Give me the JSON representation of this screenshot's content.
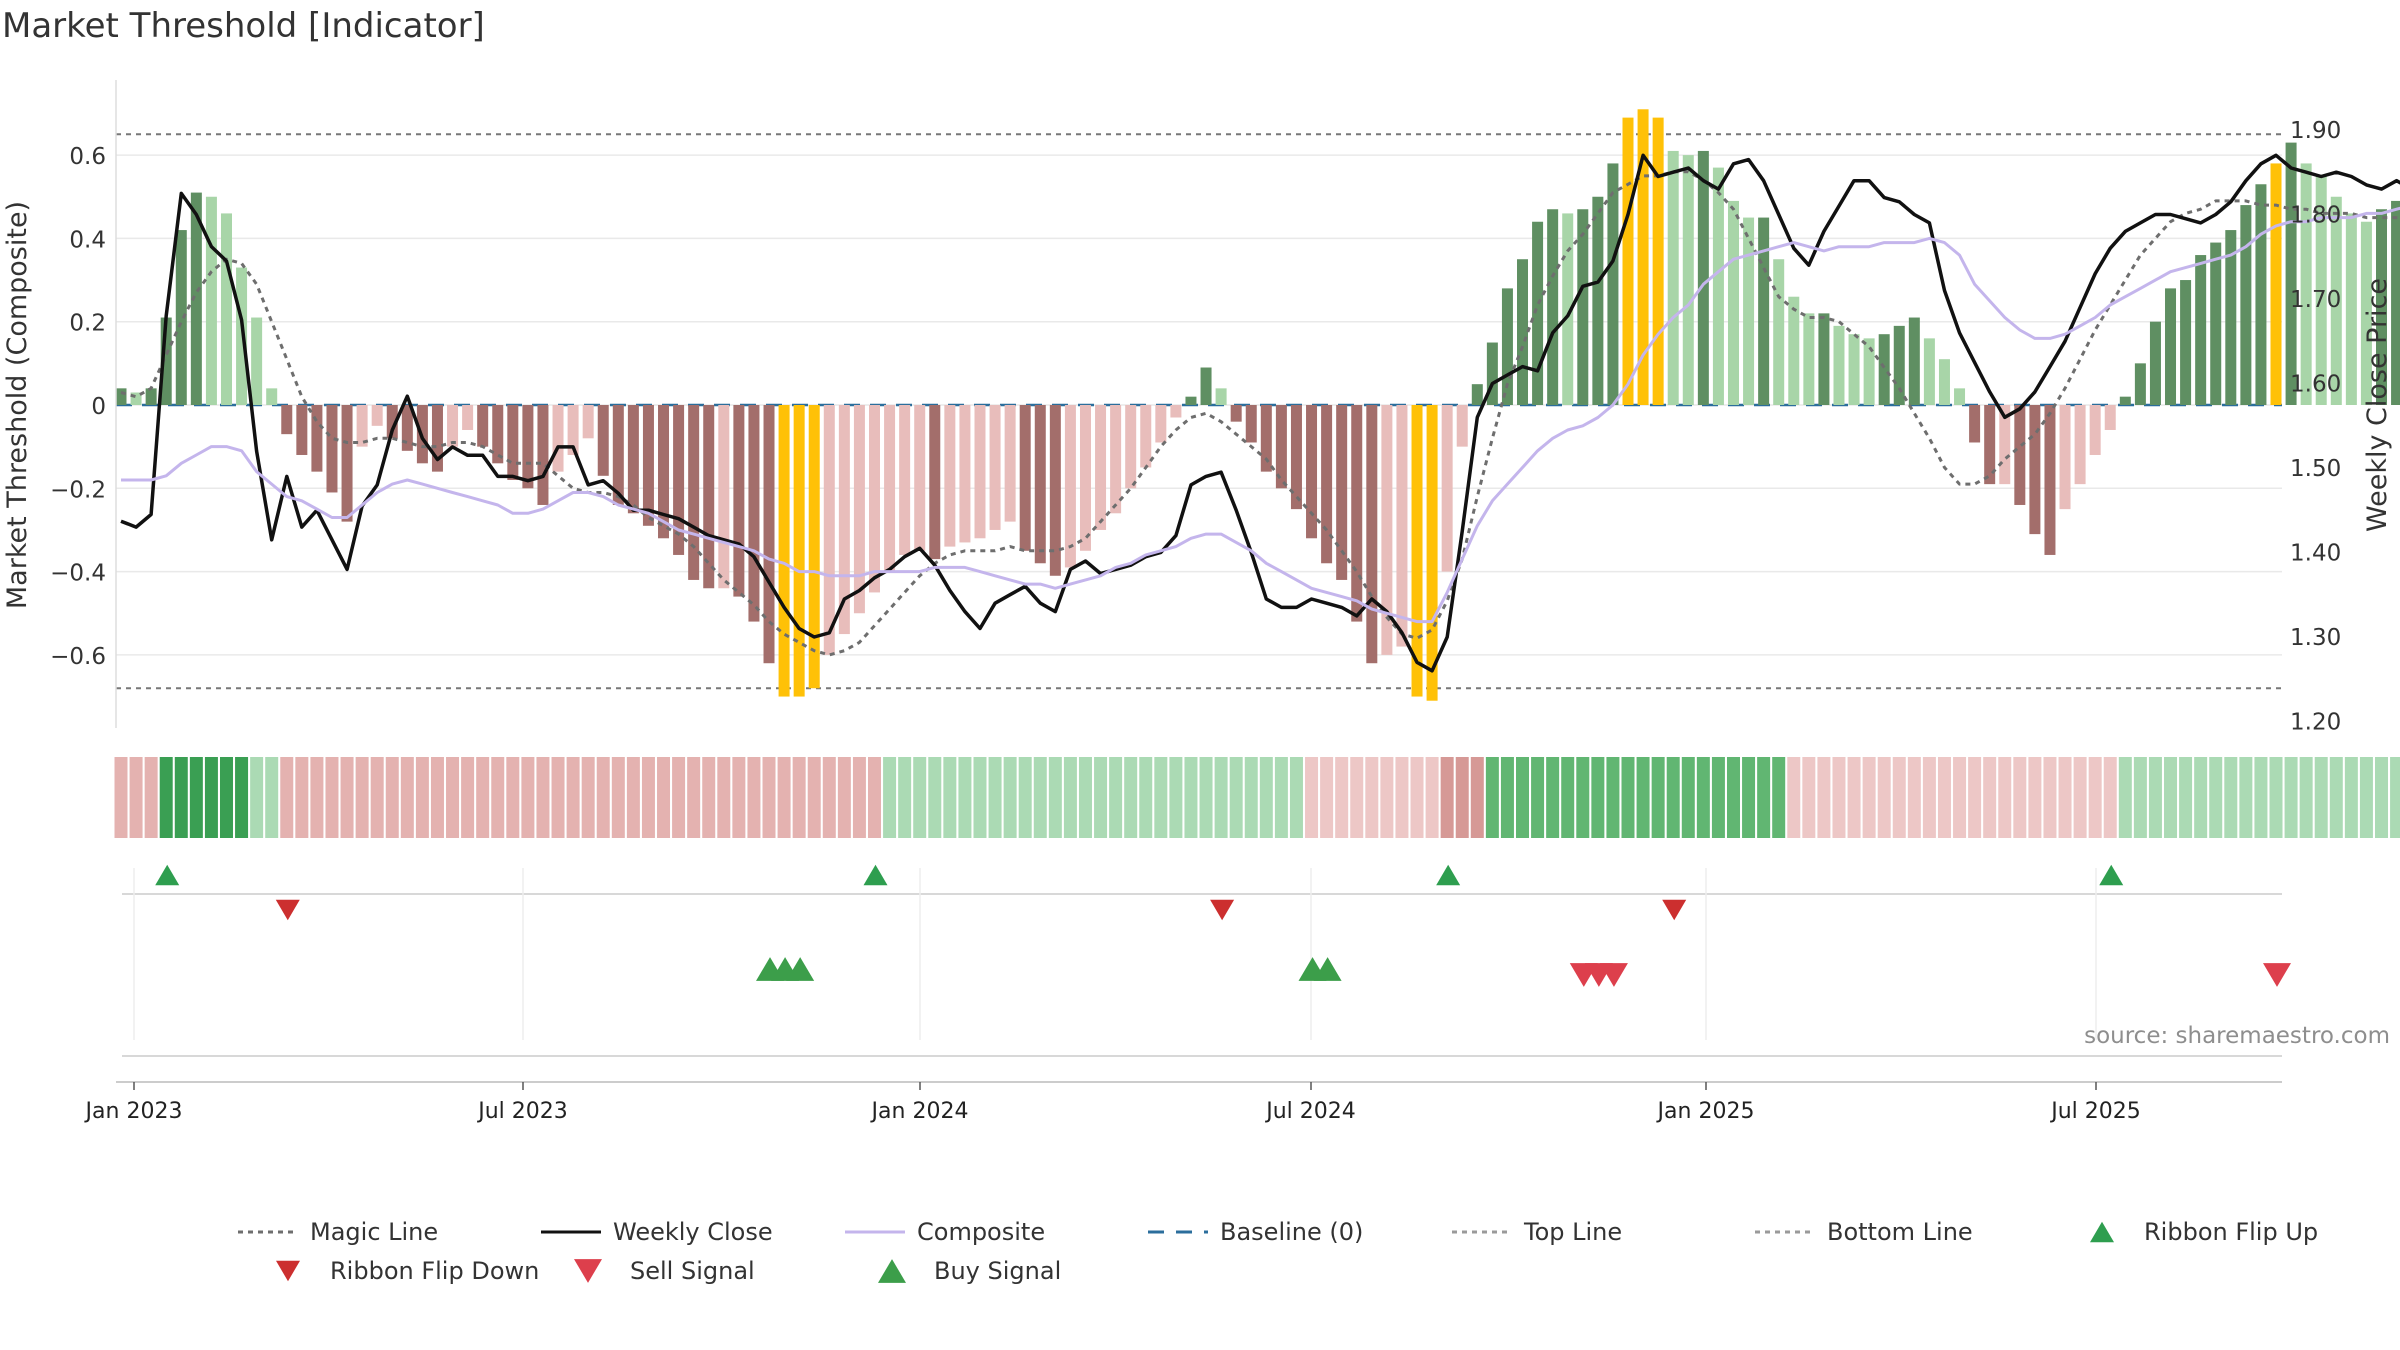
{
  "title": "Market Threshold [Indicator]",
  "watermark": "source: sharemaestro.com",
  "chart_data": {
    "type": "bar",
    "title": "Market Threshold [Indicator]",
    "x_ticks": [
      "Jan 2023",
      "Jul 2023",
      "Jan 2024",
      "Jul 2024",
      "Jan 2025",
      "Jul 2025"
    ],
    "y_left": {
      "label": "Market Threshold (Composite)",
      "ylim": [
        -0.78,
        0.78
      ],
      "ticks": [
        {
          "v": 0.6,
          "t": "0.6"
        },
        {
          "v": 0.4,
          "t": "0.4"
        },
        {
          "v": 0.2,
          "t": "0.2"
        },
        {
          "v": 0,
          "t": "0"
        },
        {
          "v": -0.2,
          "t": "−0.2"
        },
        {
          "v": -0.4,
          "t": "−0.4"
        },
        {
          "v": -0.6,
          "t": "−0.6"
        }
      ]
    },
    "y_right": {
      "label": "Weekly Close Price",
      "ylim": [
        1.18,
        1.95
      ],
      "ticks": [
        {
          "v": 1.9,
          "t": "1.90"
        },
        {
          "v": 1.8,
          "t": "1.80"
        },
        {
          "v": 1.7,
          "t": "1.70"
        },
        {
          "v": 1.6,
          "t": "1.60"
        },
        {
          "v": 1.5,
          "t": "1.50"
        },
        {
          "v": 1.4,
          "t": "1.40"
        },
        {
          "v": 1.3,
          "t": "1.30"
        },
        {
          "v": 1.2,
          "t": "1.20"
        }
      ]
    },
    "top_line": 0.65,
    "bottom_line": -0.68,
    "bars": [
      0.04,
      0.03,
      0.04,
      0.21,
      0.42,
      0.51,
      0.5,
      0.46,
      0.33,
      0.21,
      0.04,
      -0.07,
      -0.12,
      -0.16,
      -0.21,
      -0.28,
      -0.1,
      -0.05,
      -0.08,
      -0.11,
      -0.14,
      -0.16,
      -0.1,
      -0.06,
      -0.1,
      -0.14,
      -0.18,
      -0.2,
      -0.24,
      -0.16,
      -0.12,
      -0.08,
      -0.17,
      -0.24,
      -0.26,
      -0.29,
      -0.32,
      -0.36,
      -0.42,
      -0.44,
      -0.44,
      -0.46,
      -0.52,
      -0.62,
      -0.7,
      -0.7,
      -0.68,
      -0.6,
      -0.55,
      -0.5,
      -0.45,
      -0.4,
      -0.36,
      -0.35,
      -0.37,
      -0.34,
      -0.33,
      -0.32,
      -0.3,
      -0.28,
      -0.35,
      -0.38,
      -0.41,
      -0.39,
      -0.35,
      -0.3,
      -0.26,
      -0.2,
      -0.15,
      -0.09,
      -0.03,
      0.02,
      0.09,
      0.04,
      -0.04,
      -0.09,
      -0.16,
      -0.2,
      -0.25,
      -0.32,
      -0.38,
      -0.42,
      -0.52,
      -0.62,
      -0.6,
      -0.58,
      -0.7,
      -0.71,
      -0.4,
      -0.1,
      0.05,
      0.15,
      0.28,
      0.35,
      0.44,
      0.47,
      0.46,
      0.47,
      0.5,
      0.58,
      0.69,
      0.71,
      0.69,
      0.61,
      0.6,
      0.61,
      0.57,
      0.49,
      0.45,
      0.45,
      0.35,
      0.26,
      0.22,
      0.22,
      0.19,
      0.17,
      0.16,
      0.17,
      0.19,
      0.21,
      0.16,
      0.11,
      0.04,
      -0.09,
      -0.19,
      -0.19,
      -0.24,
      -0.31,
      -0.36,
      -0.25,
      -0.19,
      -0.12,
      -0.06,
      0.02,
      0.1,
      0.2,
      0.28,
      0.3,
      0.36,
      0.39,
      0.42,
      0.48,
      0.53,
      0.58,
      0.63,
      0.58,
      0.55,
      0.5,
      0.46,
      0.44,
      0.47,
      0.49,
      0.47,
      0.46,
      0.46,
      0.45,
      0.42
    ],
    "highlighted_bars": [
      44,
      45,
      46,
      86,
      87,
      100,
      101,
      102,
      143
    ],
    "ribbon": [
      -2,
      -2,
      -2,
      3,
      3,
      3,
      3,
      3,
      3,
      1,
      1,
      -2,
      -2,
      -2,
      -2,
      -2,
      -2,
      -2,
      -2,
      -2,
      -2,
      -2,
      -2,
      -2,
      -2,
      -2,
      -2,
      -2,
      -2,
      -2,
      -2,
      -2,
      -2,
      -2,
      -2,
      -2,
      -2,
      -2,
      -2,
      -2,
      -2,
      -2,
      -2,
      -2,
      -2,
      -2,
      -2,
      -2,
      -2,
      -2,
      -2,
      1,
      1,
      1,
      1,
      1,
      1,
      1,
      1,
      1,
      1,
      1,
      1,
      1,
      1,
      1,
      1,
      1,
      1,
      1,
      1,
      1,
      1,
      1,
      1,
      1,
      1,
      1,
      1,
      -1,
      -1,
      -1,
      -1,
      -1,
      -1,
      -1,
      -1,
      -1,
      -3,
      -3,
      -3,
      2,
      2,
      2,
      2,
      2,
      2,
      2,
      2,
      2,
      2,
      2,
      2,
      2,
      2,
      2,
      2,
      2,
      2,
      2,
      2,
      -1,
      -1,
      -1,
      -1,
      -1,
      -1,
      -1,
      -1,
      -1,
      -1,
      -1,
      -1,
      -1,
      -1,
      -1,
      -1,
      -1,
      -1,
      -1,
      -1,
      -1,
      -1,
      1,
      1,
      1,
      1,
      1,
      1,
      1,
      1,
      1,
      1,
      1,
      1,
      1,
      1,
      1,
      1,
      1,
      1,
      1,
      1,
      1,
      1,
      1,
      1,
      1
    ],
    "series": [
      {
        "name": "Magic Line",
        "kind": "dashed",
        "color": "#6e6e6e",
        "values": [
          0.03,
          0.02,
          0.04,
          0.12,
          0.2,
          0.27,
          0.32,
          0.35,
          0.34,
          0.29,
          0.2,
          0.11,
          0.02,
          -0.04,
          -0.08,
          -0.09,
          -0.09,
          -0.08,
          -0.08,
          -0.09,
          -0.1,
          -0.1,
          -0.09,
          -0.09,
          -0.1,
          -0.12,
          -0.14,
          -0.14,
          -0.14,
          -0.17,
          -0.2,
          -0.21,
          -0.21,
          -0.22,
          -0.24,
          -0.27,
          -0.29,
          -0.31,
          -0.34,
          -0.38,
          -0.42,
          -0.45,
          -0.48,
          -0.52,
          -0.55,
          -0.57,
          -0.59,
          -0.6,
          -0.59,
          -0.57,
          -0.53,
          -0.49,
          -0.45,
          -0.41,
          -0.38,
          -0.36,
          -0.35,
          -0.35,
          -0.35,
          -0.34,
          -0.35,
          -0.35,
          -0.35,
          -0.34,
          -0.32,
          -0.28,
          -0.24,
          -0.2,
          -0.15,
          -0.1,
          -0.06,
          -0.03,
          -0.02,
          -0.04,
          -0.07,
          -0.1,
          -0.13,
          -0.18,
          -0.22,
          -0.26,
          -0.3,
          -0.35,
          -0.4,
          -0.46,
          -0.51,
          -0.55,
          -0.56,
          -0.54,
          -0.47,
          -0.37,
          -0.22,
          -0.08,
          0.05,
          0.14,
          0.24,
          0.31,
          0.37,
          0.41,
          0.46,
          0.51,
          0.53,
          0.55,
          0.55,
          0.56,
          0.56,
          0.54,
          0.51,
          0.47,
          0.4,
          0.33,
          0.26,
          0.23,
          0.21,
          0.21,
          0.2,
          0.17,
          0.14,
          0.09,
          0.04,
          -0.02,
          -0.08,
          -0.15,
          -0.19,
          -0.19,
          -0.17,
          -0.13,
          -0.1,
          -0.07,
          -0.02,
          0.04,
          0.11,
          0.18,
          0.24,
          0.3,
          0.36,
          0.4,
          0.44,
          0.46,
          0.47,
          0.49,
          0.49,
          0.49,
          0.48,
          0.48,
          0.47,
          0.47,
          0.46,
          0.46,
          0.46,
          0.45,
          0.45,
          0.45,
          0.45,
          0.44
        ]
      },
      {
        "name": "Weekly Close",
        "kind": "solid",
        "color": "#111111",
        "values": [
          1.437,
          1.43,
          1.445,
          1.68,
          1.825,
          1.8,
          1.762,
          1.745,
          1.675,
          1.52,
          1.415,
          1.49,
          1.43,
          1.45,
          1.415,
          1.38,
          1.455,
          1.48,
          1.545,
          1.585,
          1.535,
          1.51,
          1.525,
          1.515,
          1.515,
          1.49,
          1.49,
          1.485,
          1.49,
          1.525,
          1.525,
          1.48,
          1.485,
          1.47,
          1.45,
          1.45,
          1.445,
          1.44,
          1.43,
          1.42,
          1.415,
          1.41,
          1.395,
          1.365,
          1.335,
          1.31,
          1.3,
          1.305,
          1.345,
          1.355,
          1.37,
          1.38,
          1.395,
          1.405,
          1.385,
          1.355,
          1.33,
          1.31,
          1.34,
          1.35,
          1.36,
          1.34,
          1.33,
          1.38,
          1.39,
          1.375,
          1.38,
          1.385,
          1.395,
          1.4,
          1.42,
          1.48,
          1.49,
          1.495,
          1.45,
          1.4,
          1.345,
          1.335,
          1.335,
          1.345,
          1.34,
          1.335,
          1.325,
          1.345,
          1.33,
          1.305,
          1.27,
          1.26,
          1.3,
          1.425,
          1.56,
          1.6,
          1.61,
          1.62,
          1.615,
          1.66,
          1.68,
          1.715,
          1.72,
          1.745,
          1.8,
          1.87,
          1.845,
          1.85,
          1.855,
          1.84,
          1.83,
          1.86,
          1.865,
          1.84,
          1.8,
          1.76,
          1.74,
          1.78,
          1.81,
          1.84,
          1.84,
          1.82,
          1.815,
          1.8,
          1.79,
          1.71,
          1.66,
          1.625,
          1.59,
          1.56,
          1.57,
          1.59,
          1.62,
          1.65,
          1.69,
          1.73,
          1.76,
          1.78,
          1.79,
          1.8,
          1.8,
          1.795,
          1.79,
          1.8,
          1.815,
          1.84,
          1.86,
          1.87,
          1.855,
          1.85,
          1.845,
          1.85,
          1.845,
          1.835,
          1.83,
          1.84,
          1.83
        ]
      },
      {
        "name": "Composite",
        "kind": "solid",
        "color": "#c4b5ec",
        "values": [
          -0.18,
          -0.18,
          -0.18,
          -0.17,
          -0.14,
          -0.12,
          -0.1,
          -0.1,
          -0.11,
          -0.16,
          -0.19,
          -0.22,
          -0.23,
          -0.25,
          -0.27,
          -0.27,
          -0.24,
          -0.21,
          -0.19,
          -0.18,
          -0.19,
          -0.2,
          -0.21,
          -0.22,
          -0.23,
          -0.24,
          -0.26,
          -0.26,
          -0.25,
          -0.23,
          -0.21,
          -0.21,
          -0.22,
          -0.24,
          -0.25,
          -0.26,
          -0.28,
          -0.3,
          -0.31,
          -0.32,
          -0.33,
          -0.34,
          -0.35,
          -0.37,
          -0.38,
          -0.4,
          -0.4,
          -0.41,
          -0.41,
          -0.41,
          -0.4,
          -0.4,
          -0.4,
          -0.4,
          -0.39,
          -0.39,
          -0.39,
          -0.4,
          -0.41,
          -0.42,
          -0.43,
          -0.43,
          -0.44,
          -0.43,
          -0.42,
          -0.41,
          -0.39,
          -0.38,
          -0.36,
          -0.35,
          -0.34,
          -0.32,
          -0.31,
          -0.31,
          -0.33,
          -0.35,
          -0.38,
          -0.4,
          -0.42,
          -0.44,
          -0.45,
          -0.46,
          -0.47,
          -0.49,
          -0.5,
          -0.51,
          -0.52,
          -0.52,
          -0.45,
          -0.37,
          -0.29,
          -0.23,
          -0.19,
          -0.15,
          -0.11,
          -0.08,
          -0.06,
          -0.05,
          -0.03,
          0.0,
          0.05,
          0.12,
          0.17,
          0.21,
          0.24,
          0.29,
          0.32,
          0.35,
          0.36,
          0.37,
          0.38,
          0.39,
          0.38,
          0.37,
          0.38,
          0.38,
          0.38,
          0.39,
          0.39,
          0.39,
          0.4,
          0.39,
          0.36,
          0.29,
          0.25,
          0.21,
          0.18,
          0.16,
          0.16,
          0.17,
          0.19,
          0.21,
          0.24,
          0.26,
          0.28,
          0.3,
          0.32,
          0.33,
          0.34,
          0.35,
          0.36,
          0.38,
          0.41,
          0.43,
          0.44,
          0.44,
          0.45,
          0.45,
          0.45,
          0.46,
          0.46,
          0.47,
          0.48,
          0.49,
          0.5
        ]
      }
    ],
    "ribbon_flip_up": [
      3,
      50,
      88,
      132
    ],
    "ribbon_flip_down": [
      11,
      73,
      103
    ],
    "buy_signals": [
      43,
      44,
      45,
      79,
      80
    ],
    "sell_signals": [
      97,
      98,
      99,
      143
    ],
    "legend": [
      {
        "label": "Magic Line",
        "kind": "dotted",
        "color": "#6e6e6e"
      },
      {
        "label": "Weekly Close",
        "kind": "solid",
        "color": "#111111"
      },
      {
        "label": "Composite",
        "kind": "solid",
        "color": "#c4b5ec"
      },
      {
        "label": "Baseline (0)",
        "kind": "dashed",
        "color": "#2b6e9c"
      },
      {
        "label": "Top Line",
        "kind": "dotted",
        "color": "#9a9a9a"
      },
      {
        "label": "Bottom Line",
        "kind": "dotted",
        "color": "#9a9a9a"
      },
      {
        "label": "Ribbon Flip Up",
        "kind": "tri-up",
        "color": "#2e9e4f"
      },
      {
        "label": "Ribbon Flip Down",
        "kind": "tri-down",
        "color": "#cc2f2f"
      },
      {
        "label": "Sell Signal",
        "kind": "tri-down",
        "color": "#dd3f4c"
      },
      {
        "label": "Buy Signal",
        "kind": "tri-up",
        "color": "#3c9e4a"
      }
    ],
    "colors": {
      "pos_strong": "#5f8f62",
      "pos_light": "#a8d5a8",
      "neg_strong": "#a36e6b",
      "neg_light": "#e8bdbb",
      "highlight": "#ffc107",
      "grid": "#e9e9e9"
    }
  }
}
